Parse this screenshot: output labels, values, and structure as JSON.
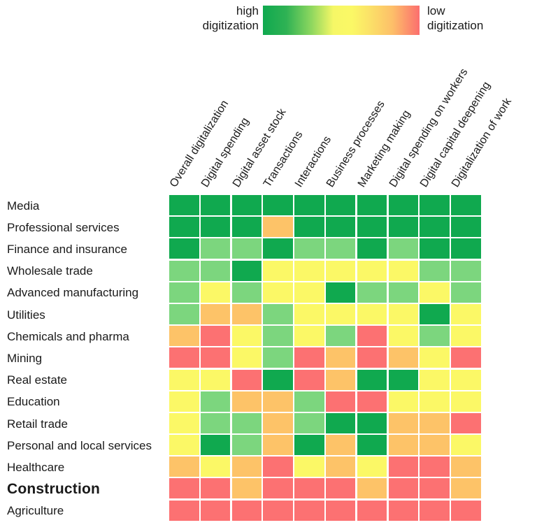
{
  "chart_data": {
    "type": "heatmap",
    "title": "",
    "legend": {
      "high_line1": "high",
      "high_line2": "digitization",
      "low_line1": "low",
      "low_line2": "digitization"
    },
    "gradient_stops": [
      [
        "#10A94F",
        0
      ],
      [
        "#2FB254",
        15
      ],
      [
        "#8ED75F",
        31
      ],
      [
        "#F6F766",
        45
      ],
      [
        "#FBF866",
        57
      ],
      [
        "#FBDD68",
        70
      ],
      [
        "#FDBE69",
        83
      ],
      [
        "#FC6E6E",
        100
      ]
    ],
    "level_colors": {
      "high": "#10A94F",
      "med-high": "#7CD67E",
      "medium": "#FBF866",
      "med-low": "#FDC368",
      "low": "#FC7172"
    },
    "levels_order": [
      "high",
      "med-high",
      "medium",
      "med-low",
      "low"
    ],
    "columns": [
      "Overall digitalization",
      "Digital spending",
      "Digital asset stock",
      "Transactions",
      "Interactions",
      "Business processes",
      "Marketing making",
      "Digital spending on workers",
      "Digital capital deepening",
      "Digitalization of work"
    ],
    "rows": [
      {
        "label": "Media",
        "bold": false,
        "values": [
          "high",
          "high",
          "high",
          "high",
          "high",
          "high",
          "high",
          "high",
          "high",
          "high"
        ]
      },
      {
        "label": "Professional services",
        "bold": false,
        "values": [
          "high",
          "high",
          "high",
          "med-low",
          "high",
          "high",
          "high",
          "high",
          "high",
          "high"
        ]
      },
      {
        "label": "Finance and insurance",
        "bold": false,
        "values": [
          "high",
          "med-high",
          "med-high",
          "high",
          "med-high",
          "med-high",
          "high",
          "med-high",
          "high",
          "high"
        ]
      },
      {
        "label": "Wholesale trade",
        "bold": false,
        "values": [
          "med-high",
          "med-high",
          "high",
          "medium",
          "medium",
          "medium",
          "medium",
          "medium",
          "med-high",
          "med-high"
        ]
      },
      {
        "label": "Advanced manufacturing",
        "bold": false,
        "values": [
          "med-high",
          "medium",
          "med-high",
          "medium",
          "medium",
          "high",
          "med-high",
          "med-high",
          "medium",
          "med-high"
        ]
      },
      {
        "label": "Utilities",
        "bold": false,
        "values": [
          "med-high",
          "med-low",
          "med-low",
          "med-high",
          "medium",
          "medium",
          "medium",
          "medium",
          "high",
          "medium"
        ]
      },
      {
        "label": "Chemicals and pharma",
        "bold": false,
        "values": [
          "med-low",
          "low",
          "medium",
          "med-high",
          "medium",
          "med-high",
          "low",
          "medium",
          "med-high",
          "medium"
        ]
      },
      {
        "label": "Mining",
        "bold": false,
        "values": [
          "low",
          "low",
          "medium",
          "med-high",
          "low",
          "med-low",
          "low",
          "med-low",
          "medium",
          "low"
        ]
      },
      {
        "label": "Real estate",
        "bold": false,
        "values": [
          "medium",
          "medium",
          "low",
          "high",
          "low",
          "med-low",
          "high",
          "high",
          "medium",
          "medium"
        ]
      },
      {
        "label": "Education",
        "bold": false,
        "values": [
          "medium",
          "med-high",
          "med-low",
          "med-low",
          "med-high",
          "low",
          "low",
          "medium",
          "medium",
          "medium"
        ]
      },
      {
        "label": "Retail trade",
        "bold": false,
        "values": [
          "medium",
          "med-high",
          "med-high",
          "med-low",
          "med-high",
          "high",
          "high",
          "med-low",
          "med-low",
          "low"
        ]
      },
      {
        "label": "Personal and local services",
        "bold": false,
        "values": [
          "medium",
          "high",
          "med-high",
          "med-low",
          "high",
          "med-low",
          "high",
          "med-low",
          "med-low",
          "medium"
        ]
      },
      {
        "label": "Healthcare",
        "bold": false,
        "values": [
          "med-low",
          "medium",
          "med-low",
          "low",
          "medium",
          "med-low",
          "medium",
          "low",
          "low",
          "med-low"
        ]
      },
      {
        "label": "Construction",
        "bold": true,
        "values": [
          "low",
          "low",
          "med-low",
          "low",
          "low",
          "low",
          "med-low",
          "low",
          "low",
          "med-low"
        ]
      },
      {
        "label": "Agriculture",
        "bold": false,
        "values": [
          "low",
          "low",
          "low",
          "low",
          "low",
          "low",
          "low",
          "low",
          "low",
          "low"
        ]
      }
    ]
  }
}
